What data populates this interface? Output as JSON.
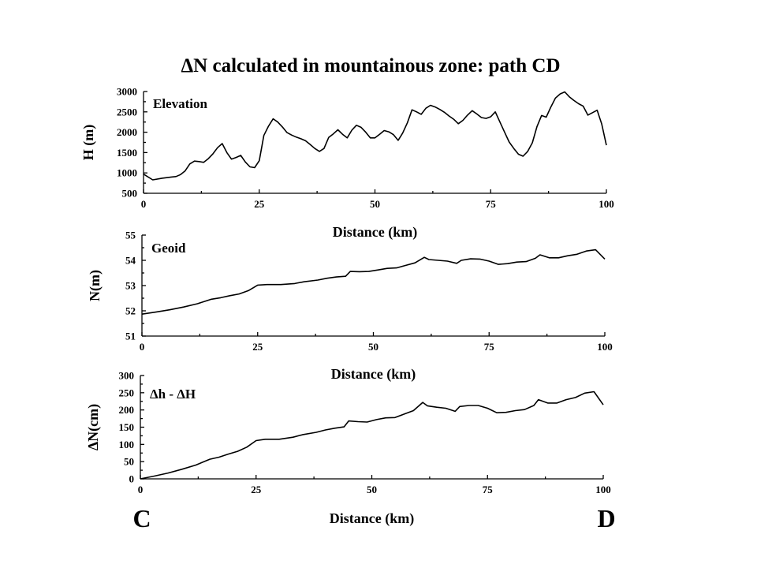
{
  "figure": {
    "title": "ΔN calculated in mountainous zone: path CD",
    "start_label": "C",
    "end_label": "D"
  },
  "chart_data": [
    {
      "type": "line",
      "panel_label": "Elevation",
      "xlabel": "Distance (km)",
      "ylabel": "H (m)",
      "xlim": [
        0,
        100
      ],
      "ylim": [
        500,
        3000
      ],
      "xticks": [
        "0",
        "25",
        "50",
        "75",
        "100"
      ],
      "yticks": [
        "500",
        "1000",
        "1500",
        "2000",
        "2500",
        "3000"
      ],
      "grid": false,
      "series": [
        {
          "x": [
            0,
            2,
            4,
            6,
            7,
            8,
            9,
            10,
            11,
            12,
            13,
            14,
            15,
            16,
            17,
            18,
            19,
            20,
            21,
            22,
            23,
            24,
            25,
            26,
            27,
            28,
            29,
            30,
            31,
            32,
            33,
            34,
            35,
            36,
            37,
            38,
            39,
            40,
            41,
            42,
            43,
            44,
            45,
            46,
            47,
            48,
            49,
            50,
            51,
            52,
            53,
            54,
            55,
            56,
            57,
            58,
            59,
            60,
            61,
            62,
            63,
            64,
            65,
            66,
            67,
            68,
            69,
            70,
            71,
            72,
            73,
            74,
            75,
            76,
            77,
            78,
            79,
            80,
            81,
            82,
            83,
            84,
            85,
            86,
            87,
            88,
            89,
            90,
            91,
            92,
            93,
            94,
            95,
            96,
            97,
            98,
            99,
            100
          ],
          "y": [
            970,
            830,
            870,
            900,
            910,
            960,
            1050,
            1220,
            1290,
            1280,
            1260,
            1350,
            1470,
            1620,
            1720,
            1500,
            1340,
            1380,
            1430,
            1270,
            1150,
            1130,
            1300,
            1920,
            2150,
            2330,
            2250,
            2130,
            1990,
            1930,
            1880,
            1840,
            1790,
            1700,
            1600,
            1530,
            1600,
            1870,
            1960,
            2060,
            1950,
            1860,
            2050,
            2170,
            2120,
            2000,
            1860,
            1860,
            1950,
            2040,
            2010,
            1940,
            1800,
            1980,
            2230,
            2550,
            2500,
            2440,
            2590,
            2660,
            2620,
            2560,
            2490,
            2400,
            2320,
            2210,
            2290,
            2420,
            2530,
            2450,
            2360,
            2340,
            2380,
            2500,
            2250,
            2000,
            1760,
            1600,
            1460,
            1410,
            1530,
            1740,
            2140,
            2410,
            2370,
            2620,
            2840,
            2940,
            2990,
            2870,
            2780,
            2700,
            2640,
            2420,
            2480,
            2540,
            2200,
            1680
          ]
        }
      ]
    },
    {
      "type": "line",
      "panel_label": "Geoid",
      "xlabel": "Distance (km)",
      "ylabel": "N(m)",
      "xlim": [
        0,
        100
      ],
      "ylim": [
        51,
        55
      ],
      "xticks": [
        "0",
        "25",
        "50",
        "75",
        "100"
      ],
      "yticks": [
        "51",
        "52",
        "53",
        "54",
        "55"
      ],
      "grid": false,
      "series": [
        {
          "x": [
            0,
            3,
            6,
            9,
            12,
            15,
            17,
            19,
            21,
            23,
            25,
            27,
            30,
            33,
            35,
            38,
            40,
            42,
            44,
            45,
            47,
            49,
            51,
            53,
            55,
            57,
            59,
            61,
            62,
            64,
            66,
            68,
            69,
            71,
            73,
            75,
            77,
            79,
            81,
            83,
            85,
            86,
            88,
            90,
            92,
            94,
            96,
            98,
            100
          ],
          "y": [
            51.87,
            51.95,
            52.04,
            52.15,
            52.28,
            52.46,
            52.52,
            52.6,
            52.67,
            52.8,
            53.02,
            53.04,
            53.04,
            53.08,
            53.15,
            53.22,
            53.29,
            53.34,
            53.37,
            53.56,
            53.55,
            53.56,
            53.62,
            53.68,
            53.7,
            53.8,
            53.9,
            54.12,
            54.03,
            54.0,
            53.97,
            53.88,
            54.0,
            54.06,
            54.05,
            53.97,
            53.84,
            53.87,
            53.93,
            53.95,
            54.08,
            54.22,
            54.1,
            54.1,
            54.18,
            54.24,
            54.37,
            54.42,
            54.05
          ]
        }
      ]
    },
    {
      "type": "line",
      "panel_label": "Δh - ΔH",
      "xlabel": "Distance (km)",
      "ylabel": "ΔN(cm)",
      "xlim": [
        0,
        100
      ],
      "ylim": [
        0,
        300
      ],
      "xticks": [
        "0",
        "25",
        "50",
        "75",
        "100"
      ],
      "yticks": [
        "0",
        "50",
        "100",
        "150",
        "200",
        "250",
        "300"
      ],
      "grid": false,
      "series": [
        {
          "x": [
            0,
            3,
            6,
            9,
            12,
            15,
            17,
            19,
            21,
            23,
            25,
            27,
            30,
            33,
            35,
            38,
            40,
            42,
            44,
            45,
            47,
            49,
            51,
            53,
            55,
            57,
            59,
            61,
            62,
            64,
            66,
            68,
            69,
            71,
            73,
            75,
            77,
            79,
            81,
            83,
            85,
            86,
            88,
            90,
            92,
            94,
            96,
            98,
            100
          ],
          "y": [
            0,
            8,
            17,
            28,
            40,
            57,
            63,
            72,
            80,
            92,
            111,
            115,
            115,
            121,
            128,
            135,
            142,
            147,
            151,
            168,
            166,
            165,
            172,
            177,
            178,
            188,
            198,
            222,
            212,
            208,
            205,
            196,
            210,
            213,
            213,
            205,
            192,
            193,
            198,
            201,
            213,
            230,
            220,
            220,
            230,
            236,
            249,
            253,
            215
          ]
        }
      ]
    }
  ]
}
